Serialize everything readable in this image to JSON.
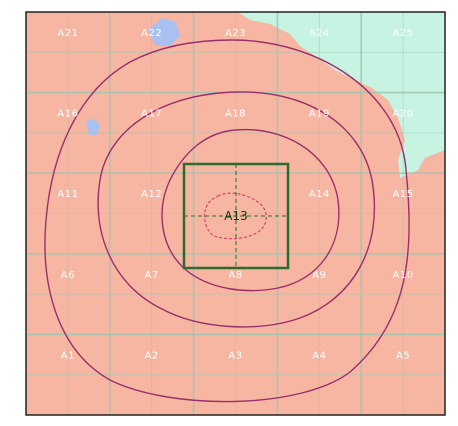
{
  "map": {
    "colors": {
      "land": "#f6b6a1",
      "land_light": "#f8c6b4",
      "water": "#c7f3e2",
      "water_blue": "#a9c1f2",
      "grid": "#9fc7b4",
      "contour": "#9a2f6b",
      "contour_inner": "#d0456e",
      "highlight": "#2e6b2e",
      "frame": "#222222"
    },
    "center_label": "A13",
    "cells": [
      {
        "row": 0,
        "col": 0,
        "label": "A21"
      },
      {
        "row": 0,
        "col": 1,
        "label": "A22"
      },
      {
        "row": 0,
        "col": 2,
        "label": "A23"
      },
      {
        "row": 0,
        "col": 3,
        "label": "A24"
      },
      {
        "row": 0,
        "col": 4,
        "label": "A25"
      },
      {
        "row": 1,
        "col": 0,
        "label": "A16"
      },
      {
        "row": 1,
        "col": 1,
        "label": "A17"
      },
      {
        "row": 1,
        "col": 2,
        "label": "A18"
      },
      {
        "row": 1,
        "col": 3,
        "label": "A19"
      },
      {
        "row": 1,
        "col": 4,
        "label": "A20"
      },
      {
        "row": 2,
        "col": 0,
        "label": "A11"
      },
      {
        "row": 2,
        "col": 1,
        "label": "A12"
      },
      {
        "row": 2,
        "col": 3,
        "label": "A14"
      },
      {
        "row": 2,
        "col": 4,
        "label": "A15"
      },
      {
        "row": 3,
        "col": 0,
        "label": "A6"
      },
      {
        "row": 3,
        "col": 1,
        "label": "A7"
      },
      {
        "row": 3,
        "col": 2,
        "label": "A8"
      },
      {
        "row": 3,
        "col": 3,
        "label": "A9"
      },
      {
        "row": 3,
        "col": 4,
        "label": "A10"
      },
      {
        "row": 4,
        "col": 0,
        "label": "A1"
      },
      {
        "row": 4,
        "col": 1,
        "label": "A2"
      },
      {
        "row": 4,
        "col": 2,
        "label": "A3"
      },
      {
        "row": 4,
        "col": 3,
        "label": "A4"
      },
      {
        "row": 4,
        "col": 4,
        "label": "A5"
      }
    ]
  }
}
